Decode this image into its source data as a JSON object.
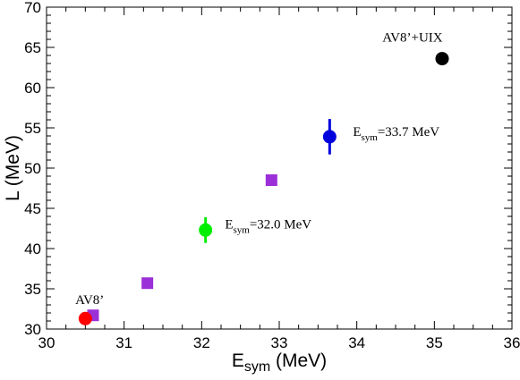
{
  "chart_data": {
    "type": "scatter",
    "title": "",
    "xlabel": {
      "main": "E",
      "sub": "sym",
      "rest": " (MeV)"
    },
    "ylabel": "L (MeV)",
    "xlim": [
      30,
      36
    ],
    "ylim": [
      30,
      70
    ],
    "xticks": [
      30,
      31,
      32,
      33,
      34,
      35,
      36
    ],
    "yticks": [
      30,
      35,
      40,
      45,
      50,
      55,
      60,
      65,
      70
    ],
    "grid": false,
    "legend": "none",
    "series": [
      {
        "marker": "square",
        "color": "#9b30d8",
        "points": [
          {
            "x": 30.6,
            "y": 31.7
          },
          {
            "x": 31.3,
            "y": 35.7
          },
          {
            "x": 32.9,
            "y": 48.5
          }
        ]
      },
      {
        "marker": "circle",
        "color": "#ff0000",
        "points": [
          {
            "x": 30.5,
            "y": 31.3,
            "yerr": 0
          }
        ]
      },
      {
        "marker": "circle",
        "color": "#00ee00",
        "points": [
          {
            "x": 32.05,
            "y": 42.3,
            "yerr": 1.6
          }
        ]
      },
      {
        "marker": "circle",
        "color": "#0000dd",
        "points": [
          {
            "x": 33.65,
            "y": 53.9,
            "yerr": 2.2
          }
        ]
      },
      {
        "marker": "circle",
        "color": "#000000",
        "points": [
          {
            "x": 35.1,
            "y": 63.6,
            "yerr": 0
          }
        ]
      }
    ],
    "annotations": [
      {
        "main": "AV8’",
        "sub": "",
        "rest": "",
        "x": 30.37,
        "y": 33.1
      },
      {
        "main": "E",
        "sub": "sym",
        "rest": "=32.0 MeV",
        "x": 32.3,
        "y": 42.5
      },
      {
        "main": "E",
        "sub": "sym",
        "rest": "=33.7 MeV",
        "x": 33.95,
        "y": 54.0
      },
      {
        "main": "AV8’+UIX",
        "sub": "",
        "rest": "",
        "x": 34.33,
        "y": 65.7
      }
    ]
  }
}
